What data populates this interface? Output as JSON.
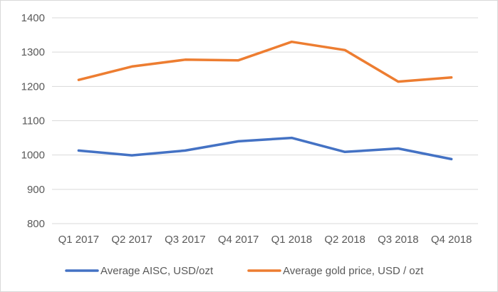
{
  "chart_data": {
    "type": "line",
    "title": "",
    "xlabel": "",
    "ylabel": "",
    "categories": [
      "Q1 2017",
      "Q2 2017",
      "Q3 2017",
      "Q4 2017",
      "Q1 2018",
      "Q2 2018",
      "Q3 2018",
      "Q4 2018"
    ],
    "yticks": [
      800,
      900,
      1000,
      1100,
      1200,
      1300,
      1400
    ],
    "ylim": [
      800,
      1400
    ],
    "grid": true,
    "legend_position": "bottom",
    "series": [
      {
        "name": "Average AISC, USD/ozt",
        "color": "#4472c4",
        "values": [
          1013,
          999,
          1013,
          1040,
          1050,
          1009,
          1019,
          988
        ]
      },
      {
        "name": "Average gold price, USD / ozt",
        "color": "#ed7d31",
        "values": [
          1219,
          1258,
          1278,
          1276,
          1330,
          1306,
          1214,
          1226
        ]
      }
    ]
  }
}
